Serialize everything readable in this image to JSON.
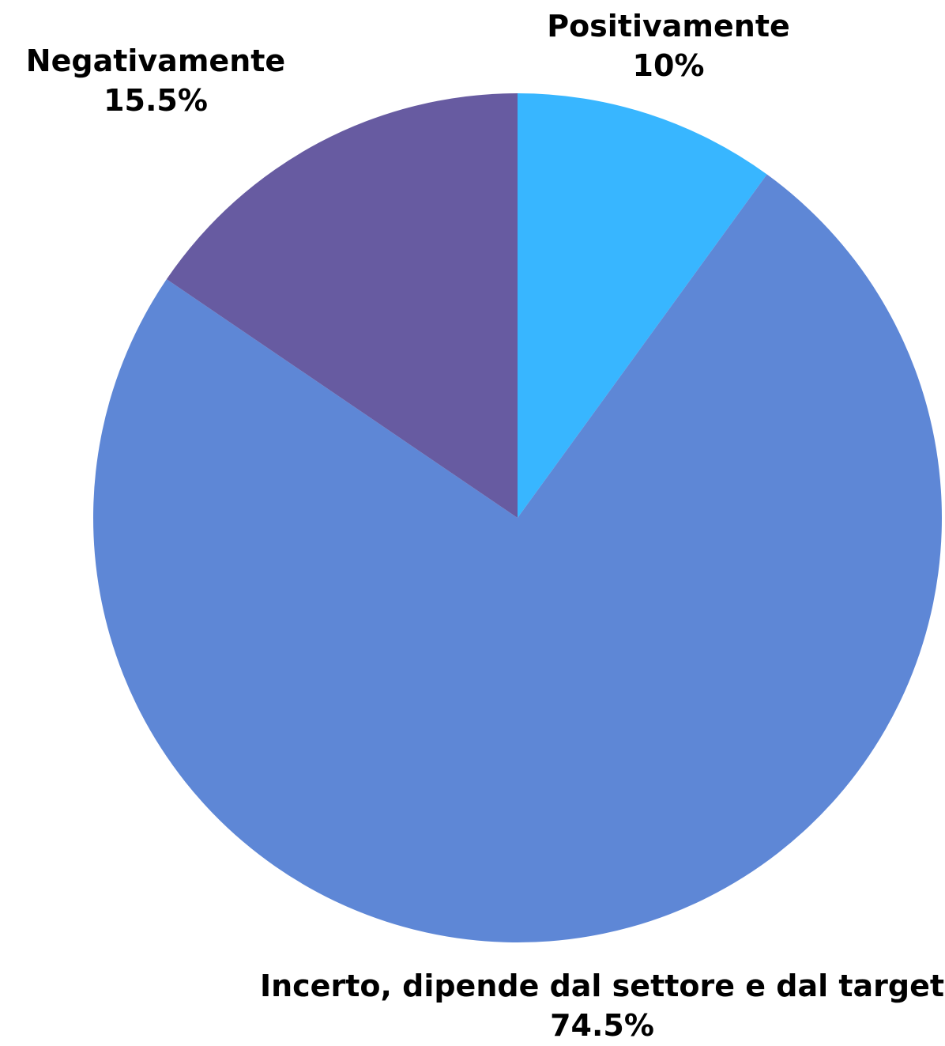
{
  "chart_data": {
    "type": "pie",
    "start_angle_deg": 0,
    "direction": "clockwise",
    "slices": [
      {
        "label": "Positivamente",
        "value": 10,
        "value_text": "10%",
        "color": "#38B6FF"
      },
      {
        "label": "Incerto, dipende dal settore e dal target",
        "value": 74.5,
        "value_text": "74.5%",
        "color": "#5E87D6"
      },
      {
        "label": "Negativamente",
        "value": 15.5,
        "value_text": "15.5%",
        "color": "#675BA1"
      }
    ]
  }
}
